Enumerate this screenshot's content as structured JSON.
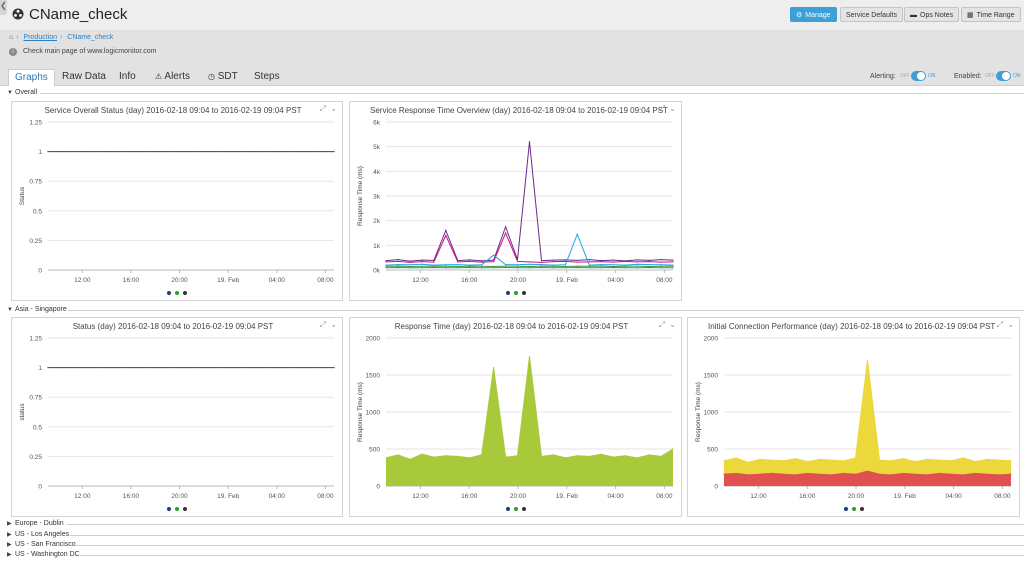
{
  "header": {
    "back_glyph": "❮",
    "title": "CName_check",
    "buttons": {
      "manage": "Manage",
      "defaults": "Service Defaults",
      "ops": "Ops Notes",
      "time": "Time Range"
    }
  },
  "breadcrumb": {
    "parent": "Production",
    "current": "CName_check"
  },
  "description": "Check main page of www.logicmonitor.com",
  "tabs": [
    {
      "label": "Graphs",
      "icon": ""
    },
    {
      "label": "Raw Data",
      "icon": ""
    },
    {
      "label": "Info",
      "icon": ""
    },
    {
      "label": "Alerts",
      "icon": "warning-icon"
    },
    {
      "label": "SDT",
      "icon": "clock-icon"
    },
    {
      "label": "Steps",
      "icon": ""
    }
  ],
  "toggles": {
    "alerting_label": "Alerting:",
    "enabled_label": "Enabled:",
    "off_text": "OFF",
    "on_text": "ON",
    "alerting_on": true,
    "enabled_on": true
  },
  "groups": {
    "overall": "Overall",
    "asia": "Asia - Singapore",
    "collapsed": [
      "Europe - Dublin",
      "US - Los Angeles",
      "US - San Francisco",
      "US - Washington DC"
    ]
  },
  "chart_data": [
    {
      "type": "line",
      "title": "Service Overall Status (day) 2016-02-18 09:04 to 2016-02-19 09:04 PST",
      "ylabel": "Status",
      "ylim": [
        0,
        1.25
      ],
      "yticks": [
        "0",
        "0.25",
        "0.5",
        "0.75",
        "1",
        "1.25"
      ],
      "xticks": [
        "12:00",
        "16:00",
        "20:00",
        "19. Feb",
        "04:00",
        "08:00"
      ],
      "series_colors": [
        "#1f3d7a",
        "#2ca02c",
        "#333333"
      ],
      "series": [
        {
          "values": [
            1,
            1,
            1,
            1,
            1,
            1,
            1,
            1,
            1,
            1,
            1,
            1,
            1,
            1,
            1,
            1,
            1,
            1,
            1,
            1,
            1,
            1,
            1,
            1,
            1
          ]
        }
      ]
    },
    {
      "type": "line",
      "title": "Service Response Time Overview (day) 2016-02-18 09:04 to 2016-02-19 09:04 PST",
      "ylabel": "Response Time (ms)",
      "ylim": [
        0,
        6000
      ],
      "yticks": [
        "0k",
        "1k",
        "2k",
        "3k",
        "4k",
        "5k",
        "6k"
      ],
      "xticks": [
        "12:00",
        "16:00",
        "20:00",
        "19. Feb",
        "04:00",
        "08:00"
      ],
      "series_colors": [
        "#1f3d7a",
        "#2ca02c",
        "#333333"
      ],
      "series": [
        {
          "color": "#6a2a8a",
          "values": [
            380,
            420,
            360,
            400,
            390,
            1600,
            380,
            410,
            370,
            400,
            1750,
            420,
            5200,
            380,
            400,
            410,
            390,
            420,
            380,
            400,
            370,
            410,
            390,
            420,
            400
          ]
        },
        {
          "color": "#d0108a",
          "values": [
            330,
            350,
            310,
            340,
            320,
            1400,
            330,
            350,
            320,
            340,
            1500,
            350,
            330,
            310,
            340,
            350,
            320,
            330,
            340,
            320,
            350,
            330,
            340,
            320,
            330
          ]
        },
        {
          "color": "#1fa2e8",
          "values": [
            200,
            220,
            210,
            230,
            200,
            210,
            220,
            200,
            210,
            600,
            220,
            210,
            230,
            220,
            200,
            210,
            1450,
            200,
            220,
            210,
            200,
            230,
            220,
            210,
            200
          ]
        },
        {
          "color": "#3a9a3a",
          "values": [
            150,
            160,
            140,
            150,
            160,
            150,
            140,
            160,
            150,
            140,
            160,
            150,
            140,
            160,
            150,
            140,
            160,
            150,
            160,
            140,
            150,
            160,
            140,
            150,
            160
          ]
        },
        {
          "color": "#2a8a8a",
          "values": [
            90,
            100,
            95,
            90,
            100,
            95,
            90,
            100,
            95,
            90,
            100,
            95,
            90,
            100,
            95,
            90,
            100,
            95,
            90,
            100,
            95,
            90,
            100,
            95,
            90
          ]
        }
      ]
    },
    {
      "type": "line",
      "title": "Status (day) 2016-02-18 09:04 to 2016-02-19 09:04 PST",
      "ylabel": "status",
      "ylim": [
        0,
        1.25
      ],
      "yticks": [
        "0",
        "0.25",
        "0.5",
        "0.75",
        "1",
        "1.25"
      ],
      "xticks": [
        "12:00",
        "16:00",
        "20:00",
        "19. Feb",
        "04:00",
        "08:00"
      ],
      "series_colors": [
        "#1f3d7a",
        "#2ca02c",
        "#333333"
      ],
      "series": [
        {
          "color": "#6a2a8a",
          "values": [
            1,
            1,
            1,
            1,
            1,
            1,
            1,
            1,
            1,
            1,
            1,
            1,
            1,
            1,
            1,
            1,
            1,
            1,
            1,
            1,
            1,
            1,
            1,
            1,
            1
          ]
        }
      ]
    },
    {
      "type": "area",
      "title": "Response Time (day) 2016-02-18 09:04 to 2016-02-19 09:04 PST",
      "ylabel": "Response Time (ms)",
      "ylim": [
        0,
        2000
      ],
      "yticks": [
        "0",
        "500",
        "1000",
        "1500",
        "2000"
      ],
      "xticks": [
        "12:00",
        "16:00",
        "20:00",
        "19. Feb",
        "04:00",
        "08:00"
      ],
      "series_colors": [
        "#1f3d7a",
        "#2ca02c",
        "#333333"
      ],
      "series": [
        {
          "color": "#a8c93a",
          "values": [
            380,
            420,
            360,
            430,
            390,
            410,
            400,
            380,
            420,
            1600,
            390,
            410,
            1750,
            400,
            420,
            380,
            410,
            400,
            430,
            390,
            410,
            380,
            420,
            400,
            500
          ]
        }
      ]
    },
    {
      "type": "area",
      "title": "Initial Connection Performance (day) 2016-02-18 09:04 to 2016-02-19 09:04 PST",
      "ylabel": "Response Time (ms)",
      "ylim": [
        0,
        2000
      ],
      "yticks": [
        "0",
        "500",
        "1000",
        "1500",
        "2000"
      ],
      "xticks": [
        "12:00",
        "16:00",
        "20:00",
        "19. Feb",
        "04:00",
        "08:00"
      ],
      "series_colors": [
        "#1f3d7a",
        "#2ca02c",
        "#333333"
      ],
      "series": [
        {
          "color": "#ecd83a",
          "values": [
            340,
            380,
            320,
            360,
            350,
            340,
            370,
            330,
            360,
            350,
            340,
            380,
            1700,
            350,
            340,
            370,
            330,
            360,
            350,
            340,
            380,
            330,
            360,
            350,
            340
          ]
        },
        {
          "color": "#e05050",
          "values": [
            160,
            170,
            150,
            160,
            170,
            160,
            150,
            170,
            160,
            150,
            170,
            160,
            200,
            160,
            150,
            170,
            160,
            150,
            170,
            160,
            150,
            170,
            160,
            150,
            160
          ]
        }
      ]
    }
  ]
}
